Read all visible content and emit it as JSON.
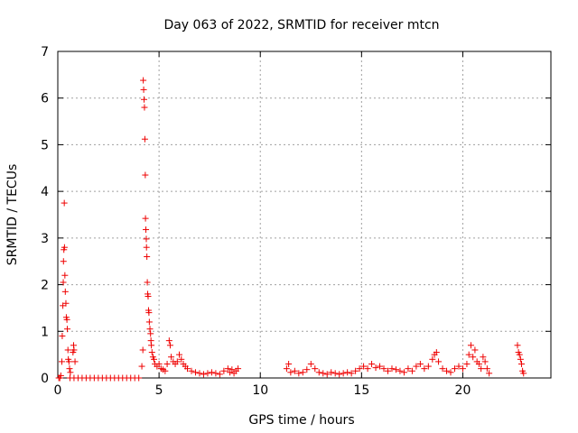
{
  "chart_data": {
    "type": "scatter",
    "title": "Day 063 of 2022, SRMTID for receiver mtcn",
    "xlabel": "GPS time / hours",
    "ylabel": "SRMTID / TECUs",
    "xlim": [
      0,
      24.35
    ],
    "ylim": [
      0,
      7
    ],
    "xticks": [
      0,
      5,
      10,
      15,
      20
    ],
    "yticks": [
      0,
      1,
      2,
      3,
      4,
      5,
      6,
      7
    ],
    "grid": true,
    "marker": "+",
    "colors": {
      "series": "#ee0000",
      "grid": "#a0a0a0",
      "axis": "#000000"
    },
    "series": [
      {
        "points": [
          [
            0.05,
            0.0
          ],
          [
            0.1,
            0.0
          ],
          [
            0.15,
            0.05
          ],
          [
            0.2,
            0.35
          ],
          [
            0.22,
            0.9
          ],
          [
            0.25,
            1.55
          ],
          [
            0.27,
            2.05
          ],
          [
            0.28,
            2.5
          ],
          [
            0.3,
            2.75
          ],
          [
            0.32,
            3.75
          ],
          [
            0.33,
            2.8
          ],
          [
            0.35,
            2.2
          ],
          [
            0.37,
            1.85
          ],
          [
            0.4,
            1.6
          ],
          [
            0.42,
            1.3
          ],
          [
            0.45,
            1.25
          ],
          [
            0.47,
            1.05
          ],
          [
            0.5,
            0.6
          ],
          [
            0.52,
            0.4
          ],
          [
            0.55,
            0.35
          ],
          [
            0.58,
            0.2
          ],
          [
            0.62,
            0.12
          ],
          [
            0.75,
            0.55
          ],
          [
            0.78,
            0.7
          ],
          [
            0.8,
            0.6
          ],
          [
            0.85,
            0.35
          ],
          [
            0.6,
            0.0
          ],
          [
            0.8,
            0.0
          ],
          [
            1.0,
            0.0
          ],
          [
            1.2,
            0.0
          ],
          [
            1.4,
            0.0
          ],
          [
            1.6,
            0.0
          ],
          [
            1.8,
            0.0
          ],
          [
            2.0,
            0.0
          ],
          [
            2.2,
            0.0
          ],
          [
            2.4,
            0.0
          ],
          [
            2.6,
            0.0
          ],
          [
            2.8,
            0.0
          ],
          [
            3.0,
            0.0
          ],
          [
            3.2,
            0.0
          ],
          [
            3.4,
            0.0
          ],
          [
            3.6,
            0.0
          ],
          [
            3.8,
            0.0
          ],
          [
            4.0,
            0.0
          ],
          [
            4.15,
            0.25
          ],
          [
            4.2,
            0.6
          ],
          [
            4.22,
            6.38
          ],
          [
            4.24,
            6.18
          ],
          [
            4.26,
            5.97
          ],
          [
            4.28,
            5.8
          ],
          [
            4.3,
            5.12
          ],
          [
            4.32,
            4.35
          ],
          [
            4.33,
            3.42
          ],
          [
            4.35,
            3.18
          ],
          [
            4.37,
            2.98
          ],
          [
            4.38,
            2.8
          ],
          [
            4.4,
            2.6
          ],
          [
            4.42,
            2.05
          ],
          [
            4.44,
            1.8
          ],
          [
            4.46,
            1.75
          ],
          [
            4.48,
            1.45
          ],
          [
            4.5,
            1.4
          ],
          [
            4.52,
            1.2
          ],
          [
            4.55,
            1.05
          ],
          [
            4.58,
            0.95
          ],
          [
            4.6,
            0.8
          ],
          [
            4.62,
            0.7
          ],
          [
            4.65,
            0.55
          ],
          [
            4.7,
            0.45
          ],
          [
            4.75,
            0.4
          ],
          [
            4.8,
            0.3
          ],
          [
            4.9,
            0.25
          ],
          [
            5.0,
            0.3
          ],
          [
            5.1,
            0.2
          ],
          [
            5.2,
            0.18
          ],
          [
            5.3,
            0.15
          ],
          [
            5.4,
            0.3
          ],
          [
            5.5,
            0.8
          ],
          [
            5.55,
            0.7
          ],
          [
            5.6,
            0.45
          ],
          [
            5.7,
            0.35
          ],
          [
            5.8,
            0.3
          ],
          [
            5.9,
            0.35
          ],
          [
            6.0,
            0.5
          ],
          [
            6.1,
            0.4
          ],
          [
            6.2,
            0.3
          ],
          [
            6.3,
            0.25
          ],
          [
            6.4,
            0.2
          ],
          [
            6.6,
            0.15
          ],
          [
            6.8,
            0.12
          ],
          [
            7.0,
            0.1
          ],
          [
            7.2,
            0.08
          ],
          [
            7.4,
            0.1
          ],
          [
            7.6,
            0.12
          ],
          [
            7.8,
            0.1
          ],
          [
            8.0,
            0.08
          ],
          [
            8.2,
            0.15
          ],
          [
            8.4,
            0.2
          ],
          [
            8.5,
            0.12
          ],
          [
            8.6,
            0.18
          ],
          [
            8.7,
            0.1
          ],
          [
            8.8,
            0.15
          ],
          [
            8.9,
            0.2
          ],
          [
            11.3,
            0.2
          ],
          [
            11.4,
            0.3
          ],
          [
            11.5,
            0.12
          ],
          [
            11.7,
            0.15
          ],
          [
            11.9,
            0.1
          ],
          [
            12.1,
            0.12
          ],
          [
            12.3,
            0.18
          ],
          [
            12.5,
            0.3
          ],
          [
            12.7,
            0.2
          ],
          [
            12.9,
            0.12
          ],
          [
            13.1,
            0.1
          ],
          [
            13.3,
            0.08
          ],
          [
            13.5,
            0.12
          ],
          [
            13.7,
            0.1
          ],
          [
            13.9,
            0.08
          ],
          [
            14.1,
            0.1
          ],
          [
            14.3,
            0.12
          ],
          [
            14.5,
            0.1
          ],
          [
            14.7,
            0.15
          ],
          [
            14.9,
            0.2
          ],
          [
            15.1,
            0.25
          ],
          [
            15.3,
            0.2
          ],
          [
            15.5,
            0.3
          ],
          [
            15.7,
            0.22
          ],
          [
            15.9,
            0.25
          ],
          [
            16.1,
            0.2
          ],
          [
            16.3,
            0.15
          ],
          [
            16.5,
            0.2
          ],
          [
            16.7,
            0.18
          ],
          [
            16.9,
            0.15
          ],
          [
            17.1,
            0.12
          ],
          [
            17.3,
            0.2
          ],
          [
            17.5,
            0.15
          ],
          [
            17.7,
            0.25
          ],
          [
            17.9,
            0.3
          ],
          [
            18.1,
            0.2
          ],
          [
            18.3,
            0.25
          ],
          [
            18.5,
            0.4
          ],
          [
            18.6,
            0.5
          ],
          [
            18.7,
            0.55
          ],
          [
            18.8,
            0.35
          ],
          [
            19.0,
            0.2
          ],
          [
            19.2,
            0.15
          ],
          [
            19.4,
            0.12
          ],
          [
            19.6,
            0.2
          ],
          [
            19.8,
            0.25
          ],
          [
            20.0,
            0.2
          ],
          [
            20.2,
            0.3
          ],
          [
            20.3,
            0.5
          ],
          [
            20.4,
            0.7
          ],
          [
            20.5,
            0.45
          ],
          [
            20.6,
            0.6
          ],
          [
            20.7,
            0.35
          ],
          [
            20.8,
            0.3
          ],
          [
            20.9,
            0.2
          ],
          [
            21.0,
            0.45
          ],
          [
            21.1,
            0.35
          ],
          [
            21.2,
            0.2
          ],
          [
            21.3,
            0.1
          ],
          [
            22.7,
            0.7
          ],
          [
            22.75,
            0.55
          ],
          [
            22.8,
            0.5
          ],
          [
            22.85,
            0.4
          ],
          [
            22.9,
            0.3
          ],
          [
            22.95,
            0.15
          ],
          [
            23.0,
            0.1
          ]
        ]
      }
    ]
  }
}
